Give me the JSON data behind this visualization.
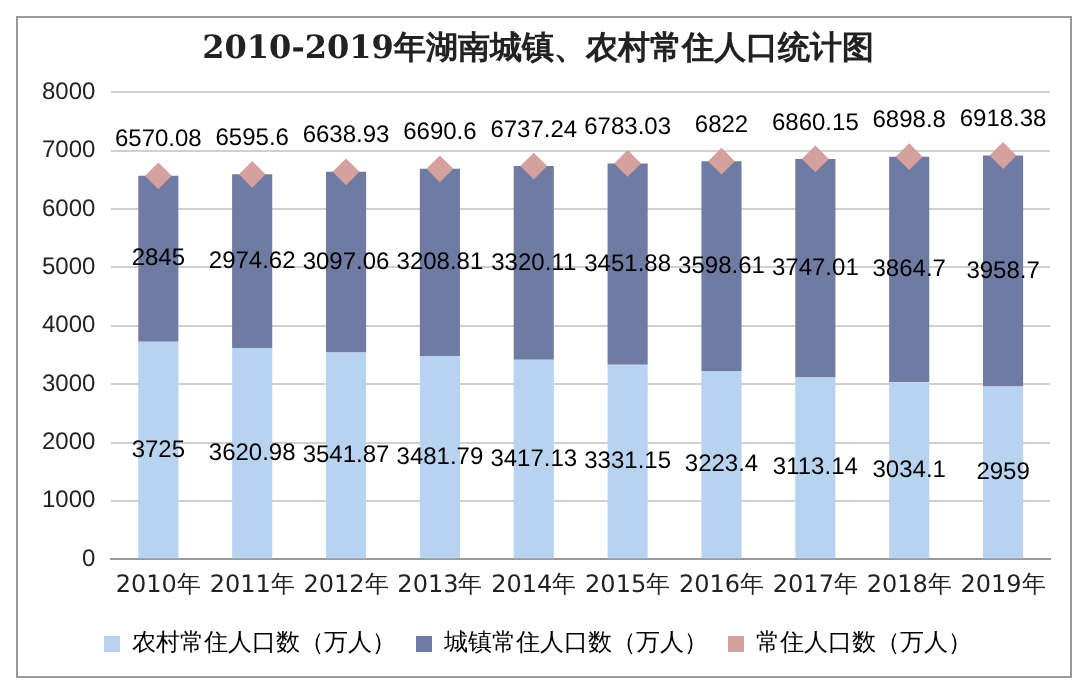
{
  "chart_data": {
    "type": "bar",
    "title": "2010-2019年湖南城镇、农村常住人口统计图",
    "stacked": true,
    "categories": [
      "2010年",
      "2011年",
      "2012年",
      "2013年",
      "2014年",
      "2015年",
      "2016年",
      "2017年",
      "2018年",
      "2019年"
    ],
    "series": [
      {
        "name": "农村常住人口数（万人）",
        "color": "#b8d3f0",
        "values": [
          3725,
          3620.98,
          3541.87,
          3481.79,
          3417.13,
          3331.15,
          3223.4,
          3113.14,
          3034.1,
          2959
        ]
      },
      {
        "name": "城镇常住人口数（万人）",
        "color": "#6f7ba3",
        "values": [
          2845,
          2974.62,
          3097.06,
          3208.81,
          3320.11,
          3451.88,
          3598.61,
          3747.01,
          3864.7,
          3958.7
        ]
      },
      {
        "name": "常住人口数（万人）",
        "type": "scatter",
        "marker": "diamond",
        "color": "#d4a19e",
        "x": [
          "2010年",
          "2011年",
          "2012年",
          "2013年",
          "2014年",
          "2015年",
          "2016年",
          "2017年",
          "2018年",
          "2019年"
        ],
        "values": [
          6570.08,
          6595.6,
          6638.93,
          6690.6,
          6737.24,
          6783.03,
          6822,
          6860.15,
          6898.8,
          6918.38
        ]
      }
    ],
    "ylim": [
      0,
      8000
    ],
    "yticks": [
      0,
      1000,
      2000,
      3000,
      4000,
      5000,
      6000,
      7000,
      8000
    ],
    "grid": "y",
    "legend": "bottom",
    "data_labels": true
  }
}
